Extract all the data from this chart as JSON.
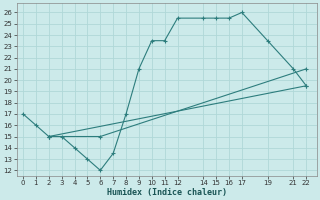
{
  "xlabel": "Humidex (Indice chaleur)",
  "ylabel": "",
  "bg_color": "#cceaea",
  "line_color": "#2d7d7d",
  "grid_color": "#b0d8d8",
  "xticks": [
    0,
    1,
    2,
    3,
    4,
    5,
    6,
    7,
    8,
    9,
    10,
    11,
    12,
    14,
    15,
    16,
    17,
    19,
    21,
    22
  ],
  "yticks": [
    12,
    13,
    14,
    15,
    16,
    17,
    18,
    19,
    20,
    21,
    22,
    23,
    24,
    25,
    26
  ],
  "xlim": [
    -0.5,
    22.8
  ],
  "ylim": [
    11.5,
    26.8
  ],
  "line1_x": [
    0,
    1,
    2,
    3,
    4,
    5,
    6,
    7,
    8,
    9,
    10,
    11,
    12,
    14,
    15,
    16,
    17,
    19,
    21,
    22
  ],
  "line1_y": [
    17,
    16,
    15,
    15,
    14,
    13,
    12,
    13.5,
    17,
    21,
    23.5,
    23.5,
    25.5,
    25.5,
    25.5,
    25.5,
    26,
    23.5,
    21,
    19.5
  ],
  "line2_x": [
    2,
    6,
    22
  ],
  "line2_y": [
    15,
    15,
    21
  ],
  "line3_x": [
    2,
    22
  ],
  "line3_y": [
    15,
    19.5
  ]
}
